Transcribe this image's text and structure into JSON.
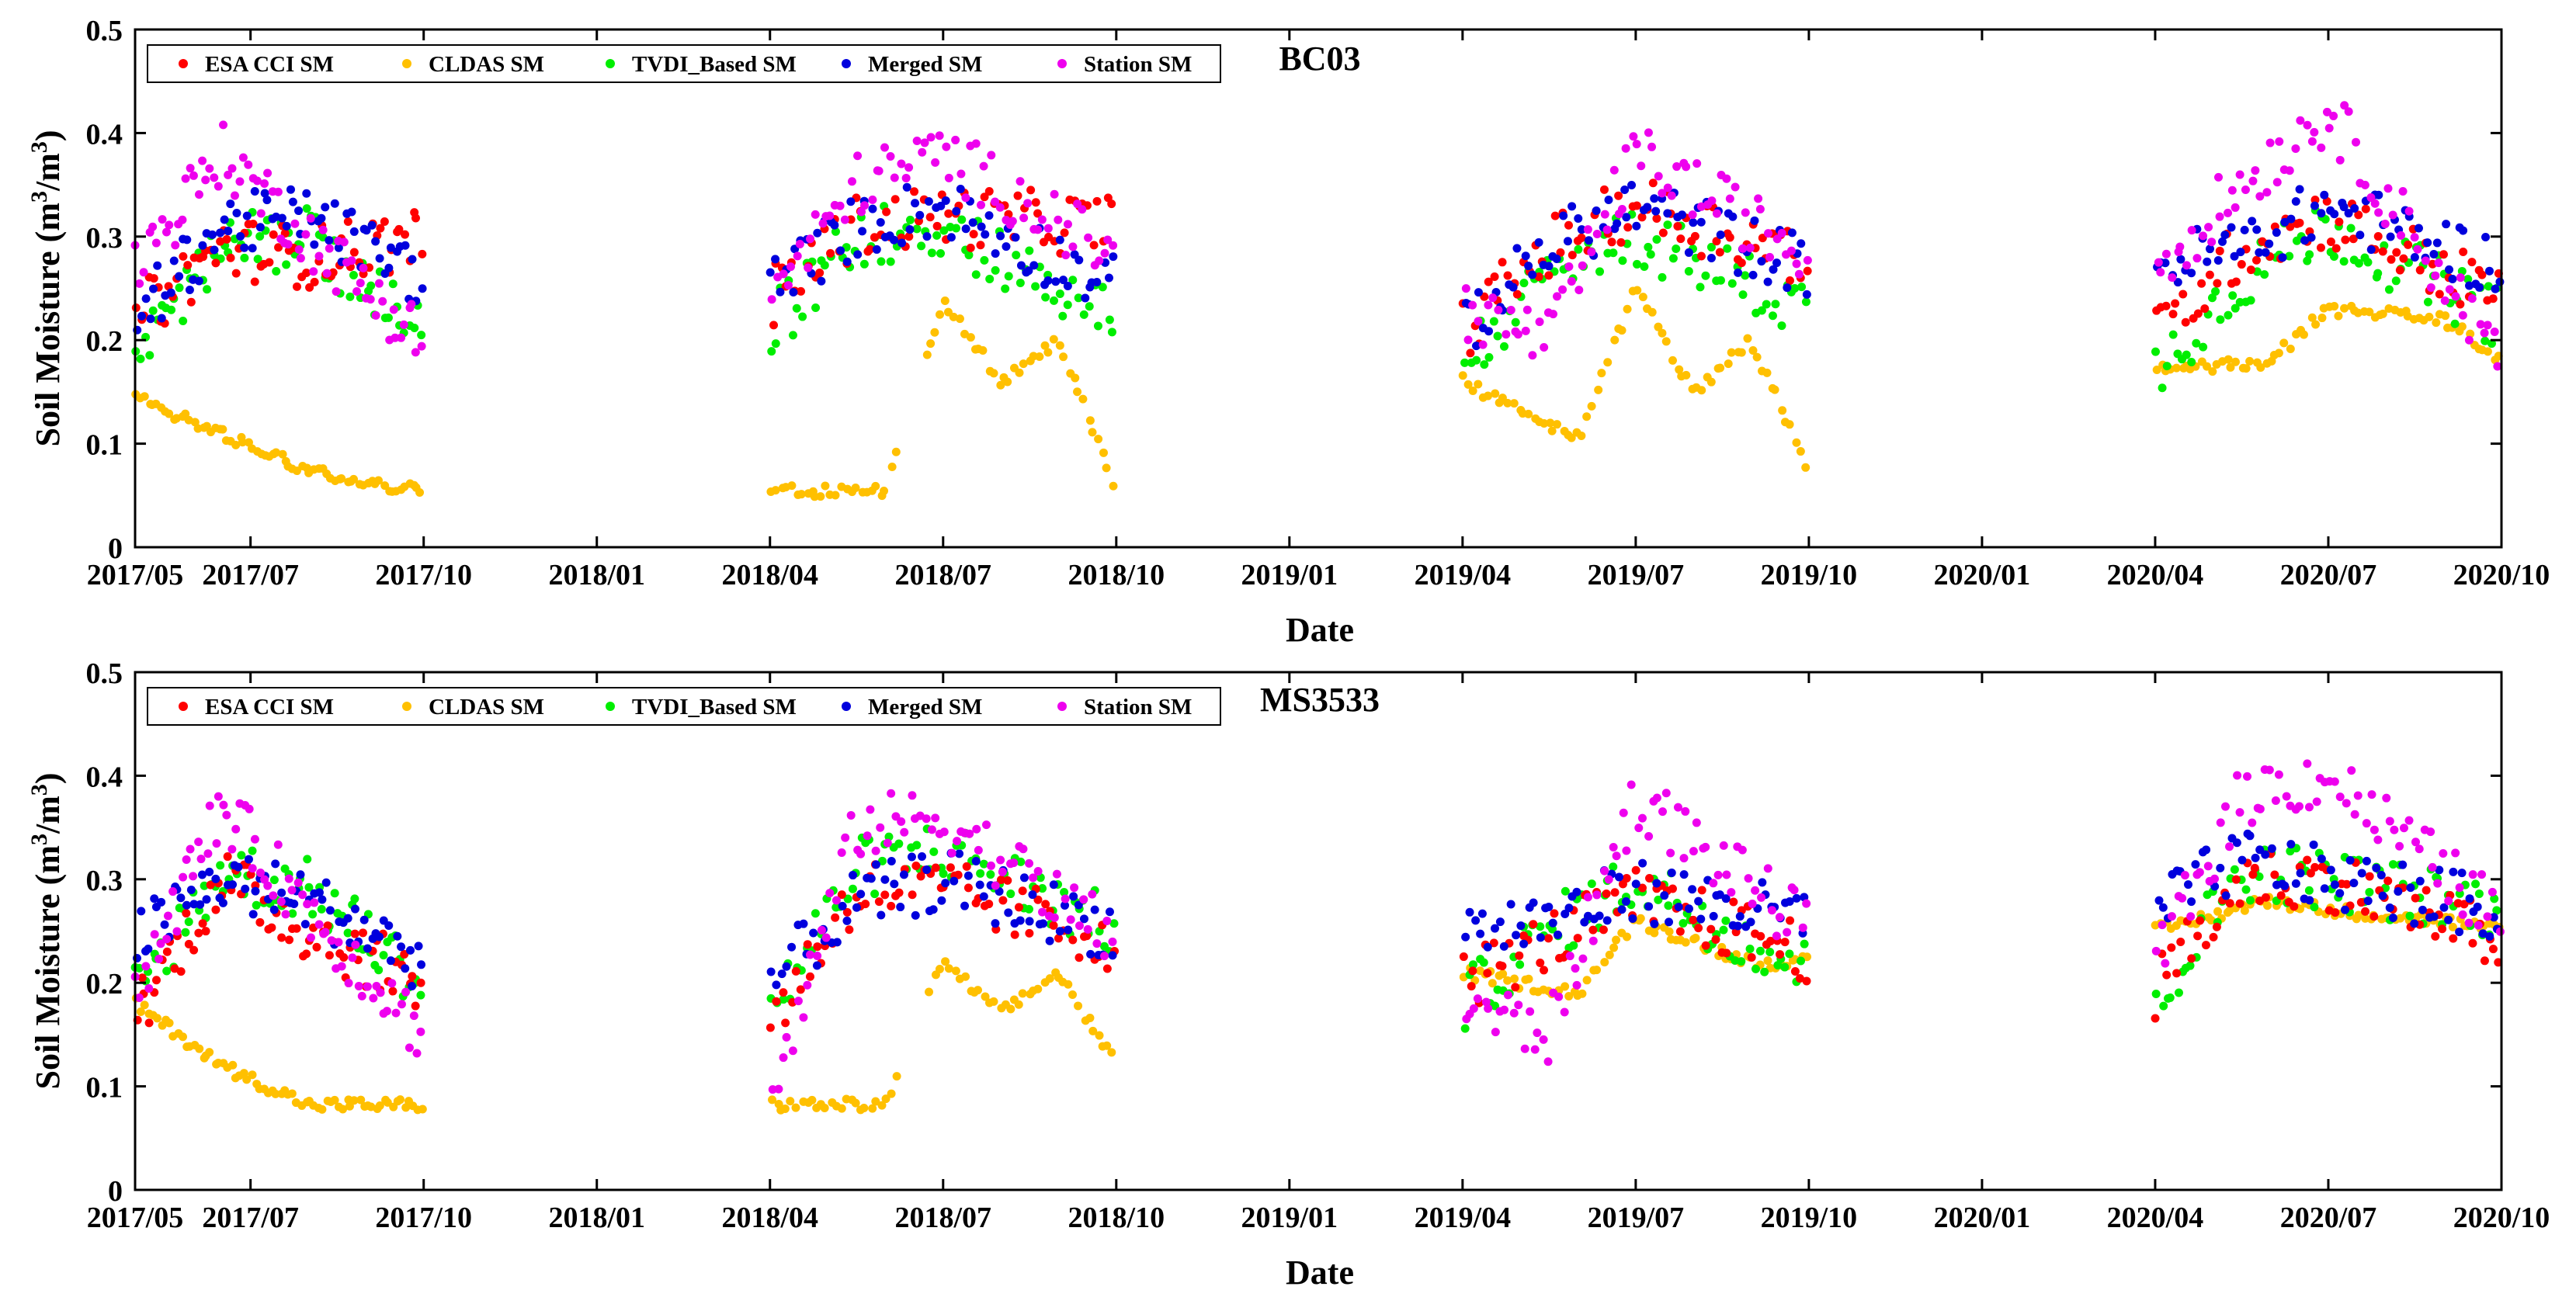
{
  "figure": {
    "x_tick_labels": [
      "2017/05",
      "2017/07",
      "2017/10",
      "2018/01",
      "2018/04",
      "2018/07",
      "2018/10",
      "2019/01",
      "2019/04",
      "2019/07",
      "2019/10",
      "2020/01",
      "2020/04",
      "2020/07",
      "2020/10"
    ],
    "y_tick_labels": [
      "0",
      "0.1",
      "0.2",
      "0.3",
      "0.4",
      "0.5"
    ]
  },
  "chart_data": [
    {
      "type": "scatter",
      "title": "BC03",
      "xlabel": "Date",
      "ylabel": "Soil Moisture (m³/m³)",
      "ylabel_main": "Soil Moisture (m",
      "ylabel_exp1": "3",
      "ylabel_mid": "/m",
      "ylabel_exp2": "3",
      "ylabel_end": ")",
      "xlim": [
        "2017/05",
        "2020/10"
      ],
      "ylim": [
        0,
        0.5
      ],
      "x_ticks": [
        "2017/05",
        "2017/07",
        "2017/10",
        "2018/01",
        "2018/04",
        "2018/07",
        "2018/10",
        "2019/01",
        "2019/04",
        "2019/07",
        "2019/10",
        "2020/01",
        "2020/04",
        "2020/07",
        "2020/10"
      ],
      "y_ticks": [
        0,
        0.1,
        0.2,
        0.3,
        0.4,
        0.5
      ],
      "legend_position": "top-left",
      "observation_periods": [
        [
          "2017/05",
          "2017/10"
        ],
        [
          "2018/04",
          "2018/10"
        ],
        [
          "2019/04",
          "2019/10"
        ],
        [
          "2020/04",
          "2020/10"
        ]
      ],
      "series": [
        {
          "name": "ESA CCI SM",
          "color": "#ff0000",
          "values": [
            [
              [
                0,
                0.22
              ],
              [
                1.5,
                0.29
              ],
              [
                3,
                0.28
              ],
              [
                5,
                0.3
              ]
            ],
            [
              [
                0,
                0.24
              ],
              [
                1.5,
                0.31
              ],
              [
                3,
                0.32
              ],
              [
                6,
                0.31
              ]
            ],
            [
              [
                0,
                0.21
              ],
              [
                1.5,
                0.29
              ],
              [
                3,
                0.33
              ],
              [
                6,
                0.28
              ]
            ],
            [
              [
                0,
                0.2
              ],
              [
                1.5,
                0.29
              ],
              [
                3,
                0.32
              ],
              [
                6,
                0.24
              ]
            ]
          ]
        },
        {
          "name": "CLDAS SM",
          "color": "#ffc000",
          "values": [
            [
              [
                0,
                0.145
              ],
              [
                1.5,
                0.11
              ],
              [
                3,
                0.075
              ],
              [
                5,
                0.053
              ]
            ],
            [
              [
                0,
                0.055
              ],
              [
                2,
                0.053
              ],
              [
                3,
                0.24
              ],
              [
                4,
                0.16
              ],
              [
                5,
                0.2
              ],
              [
                6,
                0.055
              ]
            ],
            [
              [
                0,
                0.16
              ],
              [
                2,
                0.105
              ],
              [
                3,
                0.25
              ],
              [
                4,
                0.15
              ],
              [
                5,
                0.2
              ],
              [
                6,
                0.07
              ]
            ],
            [
              [
                0,
                0.17
              ],
              [
                2,
                0.18
              ],
              [
                3,
                0.23
              ],
              [
                5,
                0.22
              ],
              [
                6,
                0.18
              ]
            ]
          ]
        },
        {
          "name": "TVDI_Based SM",
          "color": "#00ee00",
          "values": [
            [
              [
                0,
                0.19
              ],
              [
                1.5,
                0.29
              ],
              [
                3,
                0.3
              ],
              [
                5,
                0.2
              ]
            ],
            [
              [
                0,
                0.21
              ],
              [
                1.5,
                0.3
              ],
              [
                3,
                0.31
              ],
              [
                6,
                0.22
              ]
            ],
            [
              [
                0,
                0.18
              ],
              [
                1.5,
                0.26
              ],
              [
                3,
                0.3
              ],
              [
                6,
                0.23
              ]
            ],
            [
              [
                0,
                0.17
              ],
              [
                1.5,
                0.26
              ],
              [
                3,
                0.31
              ],
              [
                6,
                0.22
              ]
            ]
          ]
        },
        {
          "name": "Merged SM",
          "color": "#0000dd",
          "values": [
            [
              [
                0,
                0.22
              ],
              [
                1.5,
                0.31
              ],
              [
                3,
                0.32
              ],
              [
                5,
                0.26
              ]
            ],
            [
              [
                0,
                0.25
              ],
              [
                1.5,
                0.31
              ],
              [
                3,
                0.33
              ],
              [
                6,
                0.25
              ]
            ],
            [
              [
                0,
                0.21
              ],
              [
                1.5,
                0.29
              ],
              [
                3,
                0.33
              ],
              [
                6,
                0.27
              ]
            ],
            [
              [
                0,
                0.27
              ],
              [
                1.5,
                0.29
              ],
              [
                3,
                0.33
              ],
              [
                6,
                0.27
              ]
            ]
          ]
        },
        {
          "name": "Station SM",
          "color": "#ee00ee",
          "values": [
            [
              [
                0,
                0.27
              ],
              [
                1.5,
                0.38
              ],
              [
                3,
                0.3
              ],
              [
                5,
                0.2
              ]
            ],
            [
              [
                0,
                0.24
              ],
              [
                1.5,
                0.35
              ],
              [
                3,
                0.38
              ],
              [
                6,
                0.28
              ]
            ],
            [
              [
                0,
                0.23
              ],
              [
                1.5,
                0.2
              ],
              [
                3,
                0.38
              ],
              [
                6,
                0.28
              ]
            ],
            [
              [
                0,
                0.27
              ],
              [
                1.5,
                0.35
              ],
              [
                3,
                0.42
              ],
              [
                6,
                0.18
              ]
            ]
          ]
        }
      ]
    },
    {
      "type": "scatter",
      "title": "MS3533",
      "xlabel": "Date",
      "ylabel": "Soil Moisture (m³/m³)",
      "ylabel_main": "Soil Moisture (m",
      "ylabel_exp1": "3",
      "ylabel_mid": "/m",
      "ylabel_exp2": "3",
      "ylabel_end": ")",
      "xlim": [
        "2017/05",
        "2020/10"
      ],
      "ylim": [
        0,
        0.5
      ],
      "x_ticks": [
        "2017/05",
        "2017/07",
        "2017/10",
        "2018/01",
        "2018/04",
        "2018/07",
        "2018/10",
        "2019/01",
        "2019/04",
        "2019/07",
        "2019/10",
        "2020/01",
        "2020/04",
        "2020/07",
        "2020/10"
      ],
      "y_ticks": [
        0,
        0.1,
        0.2,
        0.3,
        0.4,
        0.5
      ],
      "legend_position": "top-left",
      "observation_periods": [
        [
          "2017/05",
          "2017/10"
        ],
        [
          "2018/04",
          "2018/10"
        ],
        [
          "2019/04",
          "2019/10"
        ],
        [
          "2020/04",
          "2020/10"
        ]
      ],
      "series": [
        {
          "name": "ESA CCI SM",
          "color": "#ff0000",
          "values": [
            [
              [
                0,
                0.17
              ],
              [
                1.5,
                0.3
              ],
              [
                3,
                0.25
              ],
              [
                5,
                0.2
              ]
            ],
            [
              [
                0,
                0.16
              ],
              [
                1.5,
                0.29
              ],
              [
                3,
                0.29
              ],
              [
                6,
                0.24
              ]
            ],
            [
              [
                0,
                0.2
              ],
              [
                1.5,
                0.24
              ],
              [
                3,
                0.28
              ],
              [
                6,
                0.23
              ]
            ],
            [
              [
                0,
                0.19
              ],
              [
                1.5,
                0.3
              ],
              [
                3,
                0.3
              ],
              [
                6,
                0.24
              ]
            ]
          ]
        },
        {
          "name": "CLDAS SM",
          "color": "#ffc000",
          "values": [
            [
              [
                0,
                0.18
              ],
              [
                1.5,
                0.12
              ],
              [
                3,
                0.082
              ],
              [
                5,
                0.082
              ]
            ],
            [
              [
                0,
                0.082
              ],
              [
                2,
                0.082
              ],
              [
                3,
                0.22
              ],
              [
                4,
                0.17
              ],
              [
                5,
                0.21
              ],
              [
                6,
                0.12
              ]
            ],
            [
              [
                0,
                0.21
              ],
              [
                2,
                0.19
              ],
              [
                3,
                0.26
              ],
              [
                5,
                0.22
              ],
              [
                6,
                0.22
              ]
            ],
            [
              [
                0,
                0.25
              ],
              [
                2,
                0.28
              ],
              [
                3,
                0.27
              ],
              [
                5,
                0.26
              ],
              [
                6,
                0.25
              ]
            ]
          ]
        },
        {
          "name": "TVDI_Based SM",
          "color": "#00ee00",
          "values": [
            [
              [
                0,
                0.19
              ],
              [
                1.5,
                0.31
              ],
              [
                3,
                0.29
              ],
              [
                5,
                0.2
              ]
            ],
            [
              [
                0,
                0.17
              ],
              [
                1.5,
                0.31
              ],
              [
                3,
                0.33
              ],
              [
                6,
                0.25
              ]
            ],
            [
              [
                0,
                0.18
              ],
              [
                1.5,
                0.25
              ],
              [
                3,
                0.3
              ],
              [
                6,
                0.21
              ]
            ],
            [
              [
                0,
                0.18
              ],
              [
                1.5,
                0.31
              ],
              [
                3,
                0.3
              ],
              [
                6,
                0.27
              ]
            ]
          ]
        },
        {
          "name": "Merged SM",
          "color": "#0000dd",
          "values": [
            [
              [
                0,
                0.24
              ],
              [
                1.5,
                0.3
              ],
              [
                3,
                0.28
              ],
              [
                5,
                0.22
              ]
            ],
            [
              [
                0,
                0.2
              ],
              [
                1.5,
                0.28
              ],
              [
                3,
                0.3
              ],
              [
                6,
                0.25
              ]
            ],
            [
              [
                0,
                0.25
              ],
              [
                1.5,
                0.26
              ],
              [
                3,
                0.29
              ],
              [
                6,
                0.26
              ]
            ],
            [
              [
                0,
                0.27
              ],
              [
                1.5,
                0.32
              ],
              [
                3,
                0.3
              ],
              [
                6,
                0.27
              ]
            ]
          ]
        },
        {
          "name": "Station SM",
          "color": "#ee00ee",
          "values": [
            [
              [
                0,
                0.19
              ],
              [
                1.5,
                0.37
              ],
              [
                3,
                0.27
              ],
              [
                5,
                0.15
              ]
            ],
            [
              [
                0,
                0.08
              ],
              [
                1.5,
                0.35
              ],
              [
                3,
                0.36
              ],
              [
                6,
                0.24
              ]
            ],
            [
              [
                0,
                0.18
              ],
              [
                1.5,
                0.15
              ],
              [
                3,
                0.38
              ],
              [
                6,
                0.25
              ]
            ],
            [
              [
                0,
                0.22
              ],
              [
                1.5,
                0.38
              ],
              [
                3,
                0.4
              ],
              [
                6,
                0.26
              ]
            ]
          ]
        }
      ]
    }
  ]
}
